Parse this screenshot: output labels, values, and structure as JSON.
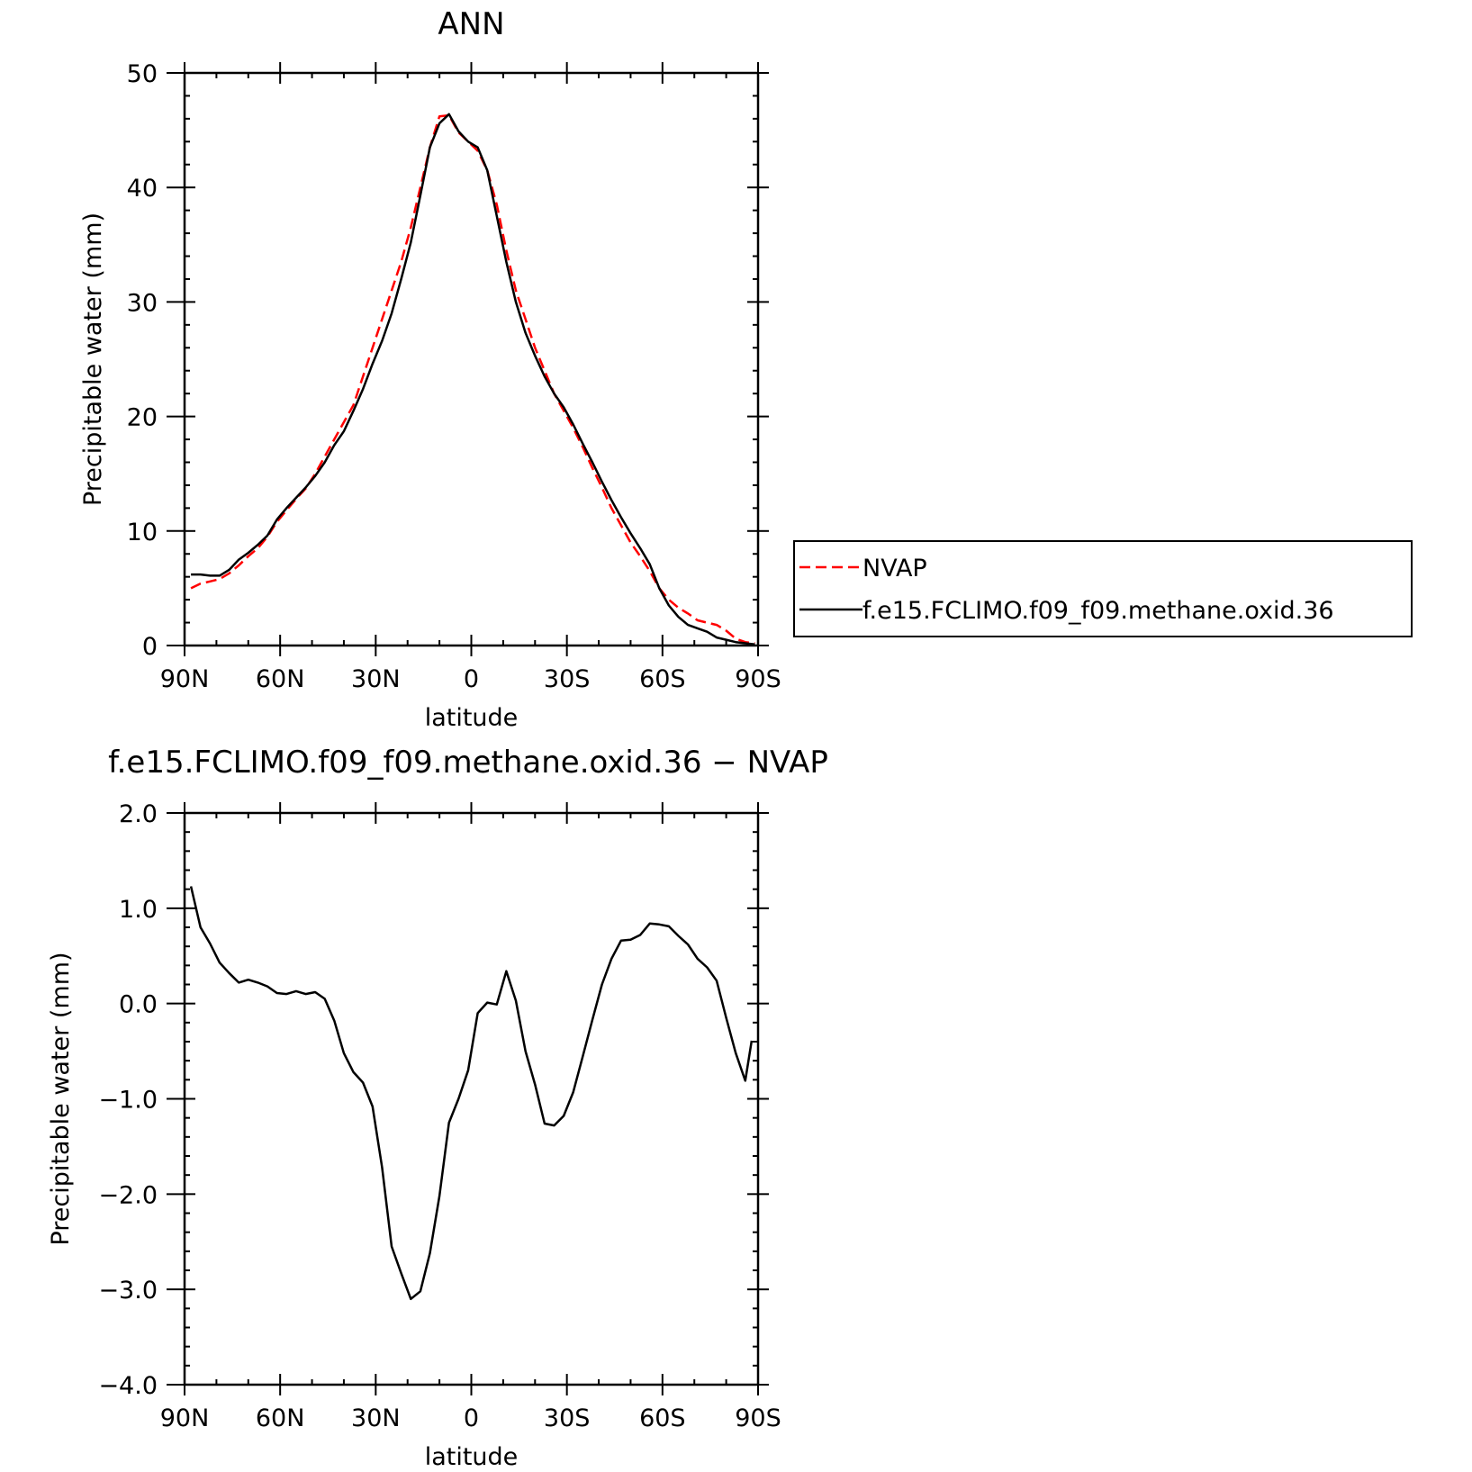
{
  "chart_data": [
    {
      "type": "line",
      "title": "ANN",
      "xlabel": "latitude",
      "ylabel": "Precipitable water (mm)",
      "xlim": [
        90,
        -90
      ],
      "ylim": [
        0,
        50
      ],
      "x_ticks": [
        90,
        60,
        30,
        0,
        -30,
        -60,
        -90
      ],
      "x_tick_labels": [
        "90N",
        "60N",
        "30N",
        "0",
        "30S",
        "60S",
        "90S"
      ],
      "y_ticks": [
        0,
        10,
        20,
        30,
        40,
        50
      ],
      "y_tick_labels": [
        "0",
        "10",
        "20",
        "30",
        "40",
        "50"
      ],
      "grid": false,
      "legend_position": "right",
      "series": [
        {
          "name": "NVAP",
          "color": "#ff0000",
          "dash": "dashed",
          "x": [
            88,
            85,
            82,
            79,
            76,
            73,
            70,
            67,
            64,
            61,
            58,
            55,
            52,
            49,
            46,
            43,
            40,
            37,
            34,
            31,
            28,
            25,
            22,
            19,
            16,
            13,
            10,
            7,
            4,
            1,
            -2,
            -5,
            -8,
            -11,
            -14,
            -17,
            -20,
            -23,
            -26,
            -29,
            -32,
            -35,
            -38,
            -41,
            -44,
            -47,
            -50,
            -53,
            -56,
            -59,
            -62,
            -65,
            -68,
            -71,
            -74,
            -77,
            -80,
            -83,
            -86,
            -89
          ],
          "y": [
            5.0,
            5.4,
            5.6,
            5.8,
            6.3,
            7.0,
            7.8,
            8.5,
            9.5,
            10.8,
            11.8,
            12.8,
            13.7,
            15.0,
            16.5,
            18.0,
            19.5,
            21.0,
            23.5,
            26.0,
            28.5,
            31.0,
            33.5,
            36.5,
            40.0,
            43.5,
            46.2,
            46.3,
            44.8,
            44.0,
            43.2,
            41.5,
            38.5,
            34.5,
            31.0,
            28.5,
            26.0,
            24.0,
            22.0,
            20.5,
            19.0,
            17.3,
            15.5,
            13.8,
            12.0,
            10.5,
            9.0,
            7.8,
            6.5,
            5.0,
            4.0,
            3.3,
            2.8,
            2.2,
            2.0,
            1.8,
            1.3,
            0.6,
            0.3,
            0.2
          ]
        },
        {
          "name": "f.e15.FCLIMO.f09_f09.methane.oxid.36",
          "color": "#000000",
          "dash": "solid",
          "x": [
            88,
            85,
            82,
            79,
            76,
            73,
            70,
            67,
            64,
            61,
            58,
            55,
            52,
            49,
            46,
            43,
            40,
            37,
            34,
            31,
            28,
            25,
            22,
            19,
            16,
            13,
            10,
            7,
            4,
            1,
            -2,
            -5,
            -8,
            -11,
            -14,
            -17,
            -20,
            -23,
            -26,
            -29,
            -32,
            -35,
            -38,
            -41,
            -44,
            -47,
            -50,
            -53,
            -56,
            -59,
            -62,
            -65,
            -68,
            -71,
            -74,
            -77,
            -80,
            -83,
            -86,
            -89
          ],
          "y": [
            6.2,
            6.2,
            6.1,
            6.1,
            6.6,
            7.5,
            8.1,
            8.8,
            9.6,
            11.0,
            12.0,
            12.9,
            13.8,
            14.8,
            16.0,
            17.5,
            18.7,
            20.5,
            22.4,
            24.6,
            26.6,
            29.0,
            32.0,
            35.2,
            39.3,
            43.5,
            45.6,
            46.4,
            44.9,
            44.0,
            43.5,
            41.5,
            37.5,
            33.5,
            30.0,
            27.3,
            25.3,
            23.5,
            22.0,
            20.8,
            19.3,
            17.6,
            16.0,
            14.3,
            12.7,
            11.2,
            9.8,
            8.5,
            7.1,
            5.0,
            3.5,
            2.5,
            1.8,
            1.5,
            1.2,
            0.7,
            0.5,
            0.3,
            0.2,
            0.1
          ]
        }
      ]
    },
    {
      "type": "line",
      "title": "f.e15.FCLIMO.f09_f09.methane.oxid.36 − NVAP",
      "xlabel": "latitude",
      "ylabel": "Precipitable water (mm)",
      "xlim": [
        90,
        -90
      ],
      "ylim": [
        -4.0,
        2.0
      ],
      "x_ticks": [
        90,
        60,
        30,
        0,
        -30,
        -60,
        -90
      ],
      "x_tick_labels": [
        "90N",
        "60N",
        "30N",
        "0",
        "30S",
        "60S",
        "90S"
      ],
      "y_ticks": [
        -4.0,
        -3.0,
        -2.0,
        -1.0,
        0.0,
        1.0,
        2.0
      ],
      "y_tick_labels": [
        "−4.0",
        "−3.0",
        "−2.0",
        "−1.0",
        "0.0",
        "1.0",
        "2.0"
      ],
      "grid": false,
      "series": [
        {
          "color": "#000000",
          "dash": "solid",
          "x": [
            88,
            85,
            82,
            79,
            76,
            73,
            70,
            67,
            64,
            61,
            58,
            55,
            52,
            49,
            46,
            43,
            40,
            37,
            34,
            31,
            28,
            25,
            22,
            19,
            16,
            13,
            10,
            7,
            4,
            1,
            -2,
            -5,
            -8,
            -11,
            -14,
            -17,
            -20,
            -23,
            -26,
            -29,
            -32,
            -35,
            -38,
            -41,
            -44,
            -47,
            -50,
            -53,
            -56,
            -59,
            -62,
            -65,
            -68,
            -71,
            -74,
            -77,
            -80,
            -83,
            -86,
            -88
          ],
          "y": [
            1.23,
            0.8,
            0.63,
            0.43,
            0.32,
            0.22,
            0.25,
            0.22,
            0.18,
            0.11,
            0.1,
            0.13,
            0.1,
            0.12,
            0.05,
            -0.18,
            -0.52,
            -0.72,
            -0.83,
            -1.08,
            -1.72,
            -2.55,
            -2.83,
            -3.1,
            -3.02,
            -2.62,
            -2.02,
            -1.25,
            -1.0,
            -0.7,
            -0.1,
            0.01,
            -0.01,
            0.34,
            0.03,
            -0.5,
            -0.85,
            -1.26,
            -1.28,
            -1.18,
            -0.93,
            -0.55,
            -0.17,
            0.2,
            0.47,
            0.66,
            0.67,
            0.72,
            0.84,
            0.83,
            0.81,
            0.71,
            0.62,
            0.47,
            0.38,
            0.24,
            -0.15,
            -0.52,
            -0.81,
            -0.39
          ]
        }
      ]
    }
  ]
}
